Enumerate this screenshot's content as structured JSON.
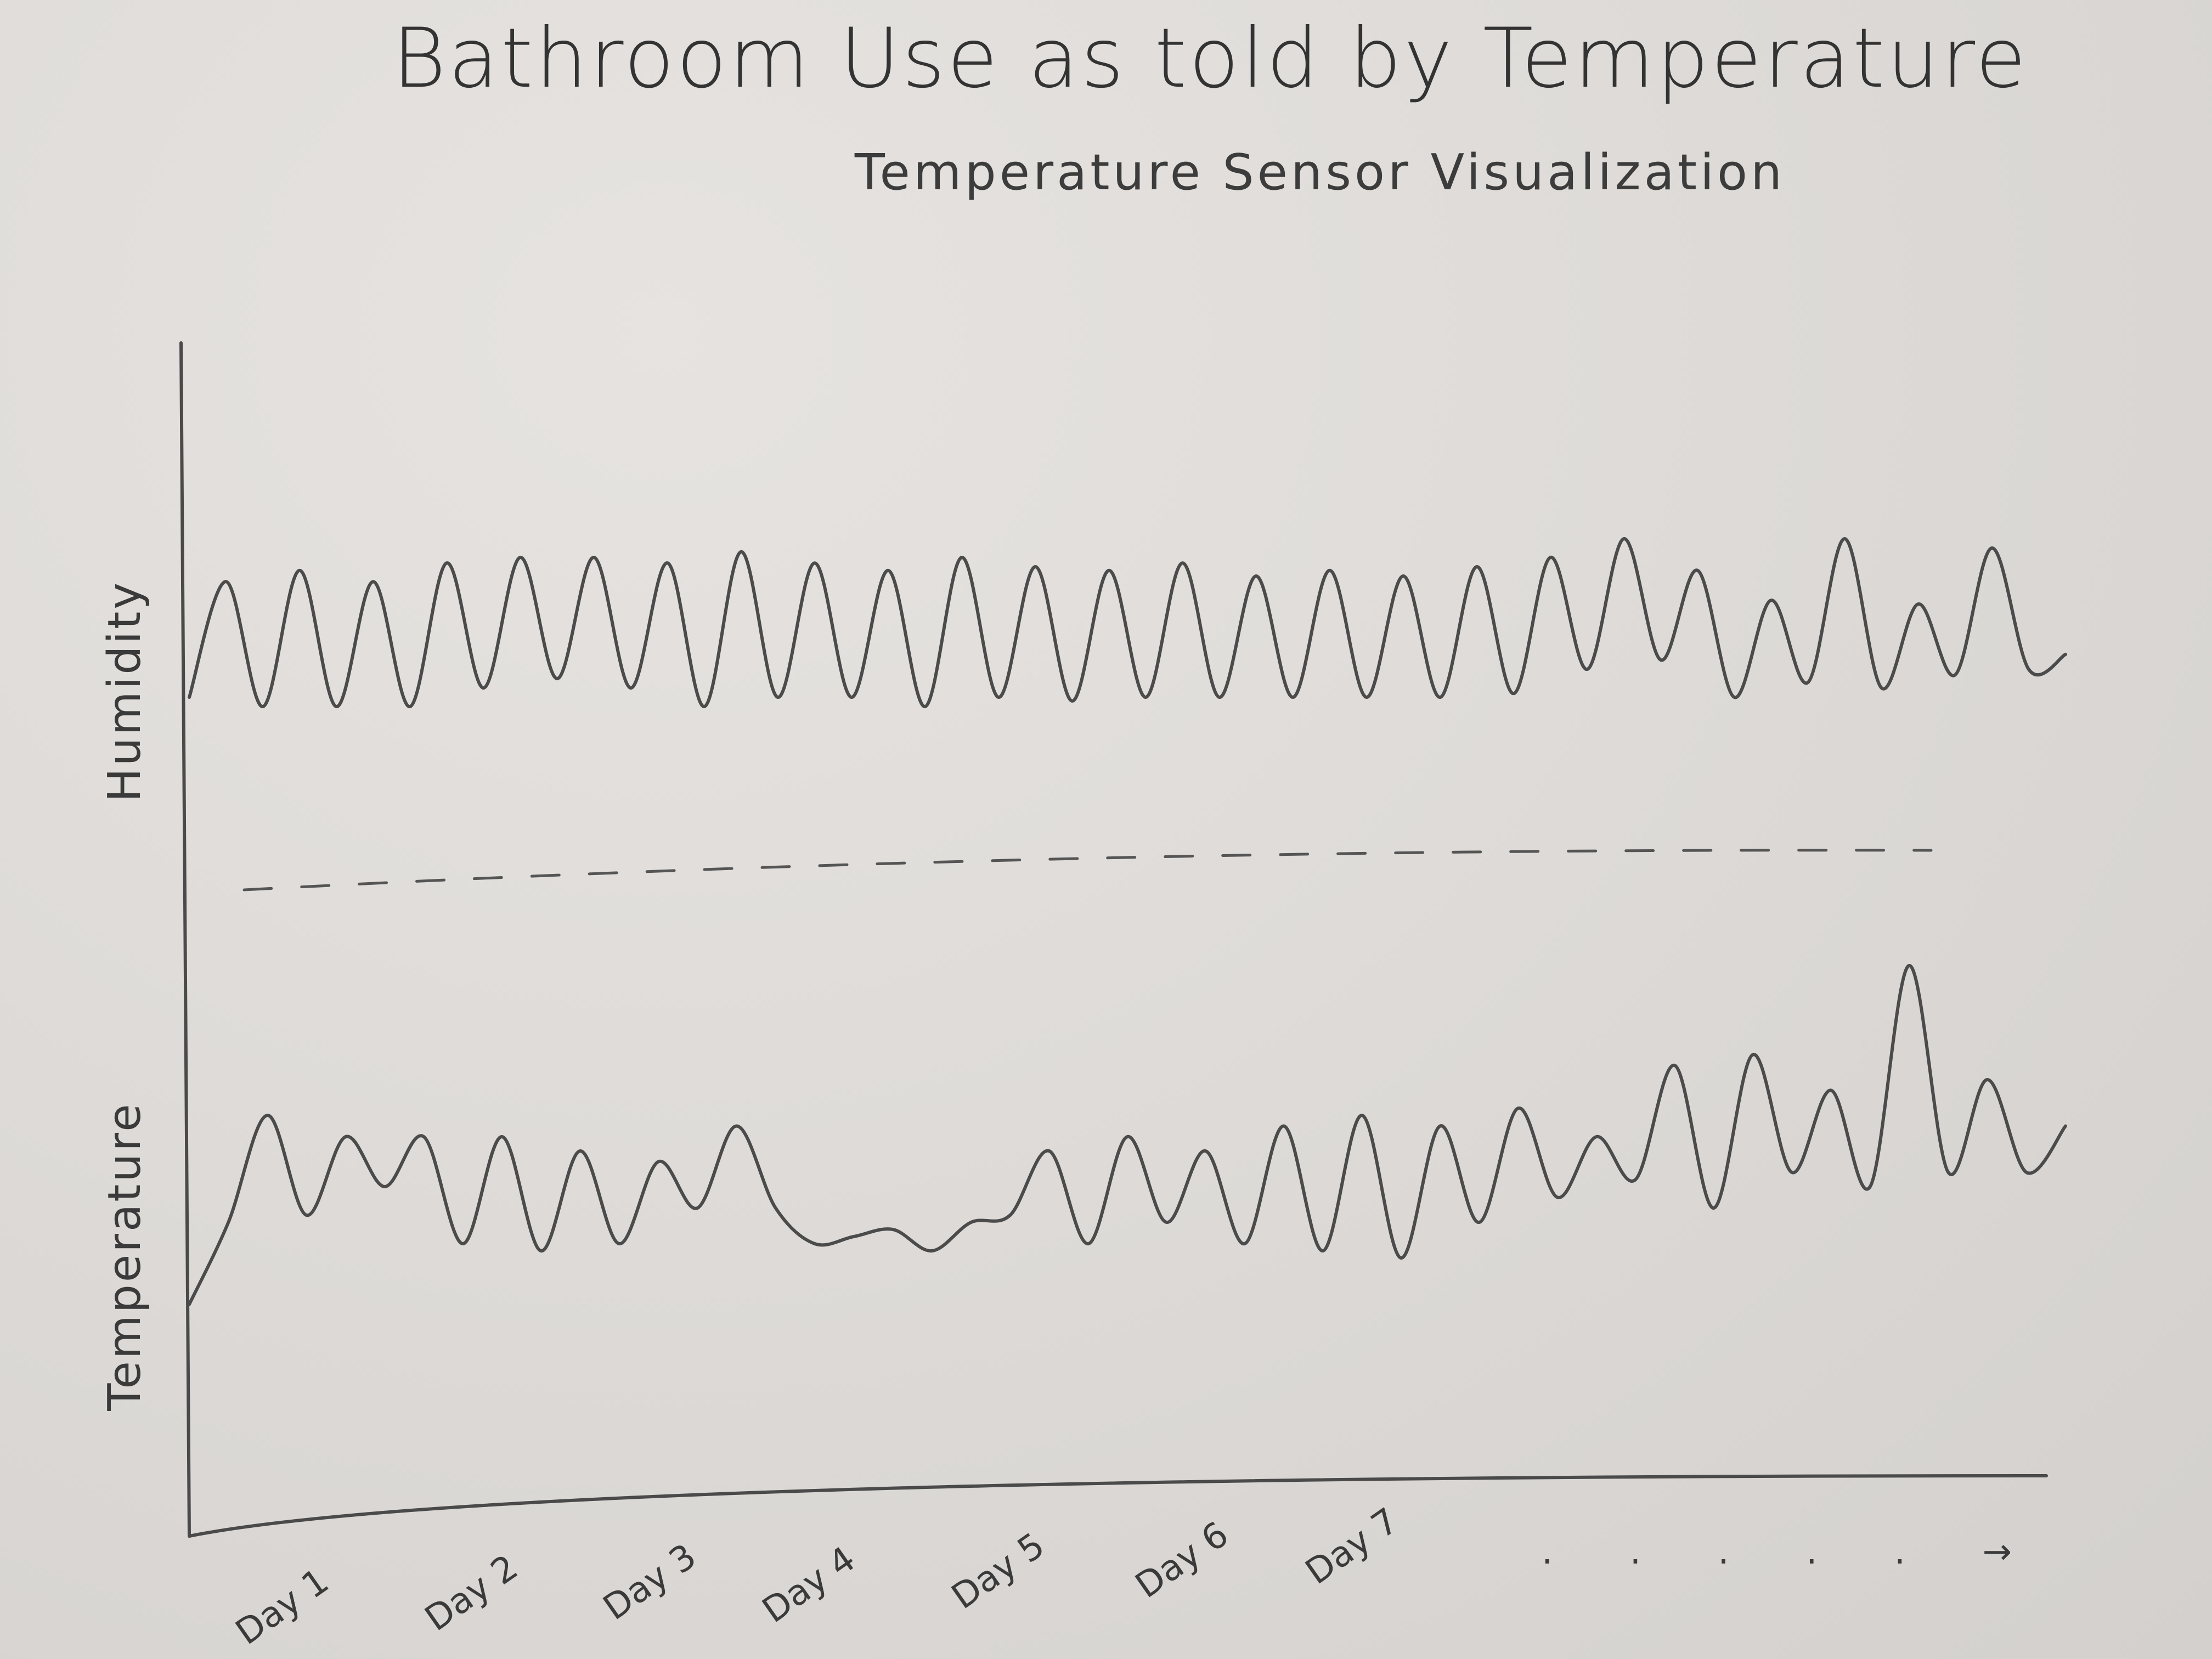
{
  "chart_data": {
    "type": "line",
    "title": "Bathroom Use as told by Temperature",
    "subtitle": "Temperature Sensor Visualization",
    "xlabel": "",
    "categories": [
      "Day 1",
      "Day 2",
      "Day 3",
      "Day 4",
      "Day 5",
      "Day 6",
      "Day 7"
    ],
    "continuation": ". . . . . →",
    "panels": [
      {
        "ylabel": "Humidity",
        "series": [
          {
            "values": [
              0.1,
              0.72,
              0.05,
              0.78,
              0.05,
              0.72,
              0.05,
              0.82,
              0.15,
              0.85,
              0.2,
              0.85,
              0.15,
              0.82,
              0.05,
              0.88,
              0.1,
              0.82,
              0.1,
              0.78,
              0.05,
              0.85,
              0.1,
              0.8,
              0.08,
              0.78,
              0.1,
              0.82,
              0.1,
              0.75,
              0.1,
              0.78,
              0.1,
              0.75,
              0.1,
              0.8,
              0.12,
              0.85,
              0.25,
              0.95,
              0.3,
              0.78,
              0.1,
              0.62,
              0.18,
              0.95,
              0.15,
              0.6,
              0.22,
              0.9,
              0.25,
              0.33
            ]
          }
        ]
      },
      {
        "ylabel": "Temperature",
        "series": [
          {
            "values": [
              0.05,
              0.28,
              0.58,
              0.3,
              0.52,
              0.38,
              0.52,
              0.22,
              0.52,
              0.2,
              0.48,
              0.22,
              0.45,
              0.32,
              0.55,
              0.32,
              0.22,
              0.24,
              0.26,
              0.2,
              0.28,
              0.3,
              0.48,
              0.22,
              0.52,
              0.28,
              0.48,
              0.22,
              0.55,
              0.2,
              0.58,
              0.18,
              0.55,
              0.28,
              0.6,
              0.35,
              0.52,
              0.4,
              0.72,
              0.32,
              0.75,
              0.42,
              0.65,
              0.38,
              1.0,
              0.42,
              0.68,
              0.42,
              0.55
            ]
          }
        ]
      }
    ],
    "grid": false,
    "legend": "none"
  }
}
